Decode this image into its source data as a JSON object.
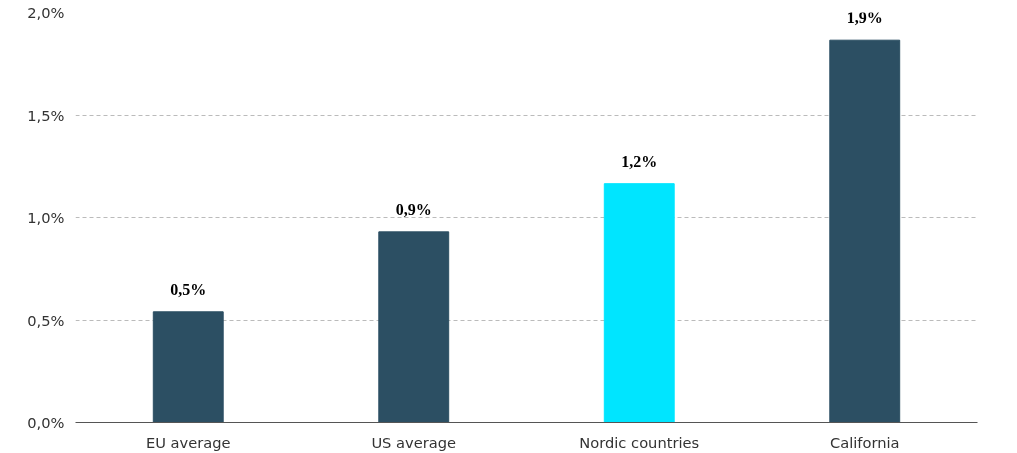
{
  "chart_data": {
    "type": "bar",
    "categories": [
      "EU average",
      "US average",
      "Nordic countries",
      "California"
    ],
    "values": [
      0.54,
      0.93,
      1.165,
      1.865
    ],
    "colors": [
      "#2c4f63",
      "#2c4f63",
      "#00e5ff",
      "#2c4f63"
    ],
    "value_labels": [
      "0,5%",
      "0,9%",
      "1,2%",
      "1,9%"
    ],
    "ylim": [
      0,
      2.0
    ],
    "yticks": [
      {
        "value": 0,
        "label": "0,0%"
      },
      {
        "value": 0.5,
        "label": "0,5%"
      },
      {
        "value": 1.0,
        "label": "1,0%"
      },
      {
        "value": 1.5,
        "label": "1,5%"
      },
      {
        "value": 2.0,
        "label": "2,0%"
      }
    ],
    "grid": "y"
  }
}
